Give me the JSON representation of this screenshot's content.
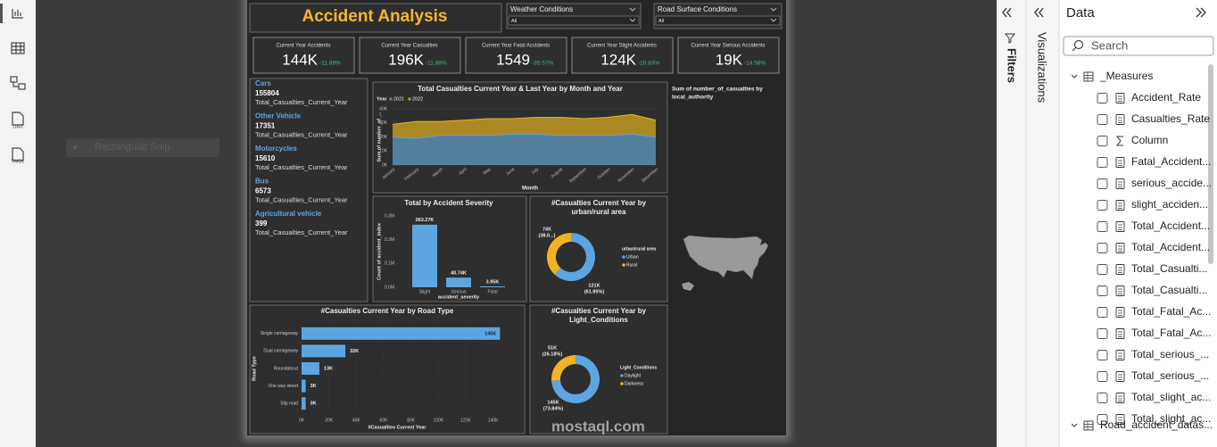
{
  "app": {
    "sidebar_labels": [
      "DAX",
      "TMDL"
    ],
    "snip": "Rectangular Snip",
    "watermark": "mostaql.com"
  },
  "report": {
    "title": "Accident Analysis",
    "slicers": [
      {
        "label": "Weather Conditions",
        "value": "All"
      },
      {
        "label": "Road Surface Conditions",
        "value": "All"
      }
    ],
    "kpis": [
      {
        "label": "Current Year Accidents",
        "value": "144K",
        "change": "-11.89%"
      },
      {
        "label": "Current Year Casualties",
        "value": "196K",
        "change": "-11.88%"
      },
      {
        "label": "Current Year Fatal Accidents",
        "value": "1549",
        "change": "-35.57%"
      },
      {
        "label": "Current Year Slight Accidents",
        "value": "124K",
        "change": "-10.83%"
      },
      {
        "label": "Current Year Serious Accidents",
        "value": "19K",
        "change": "-14.58%"
      }
    ],
    "vehicles": [
      {
        "name": "Cars",
        "value": 155804,
        "measure": "Total_Casualties_Current_Year"
      },
      {
        "name": "Other Vehicle",
        "value": 17351,
        "measure": "Total_Casualties_Current_Year"
      },
      {
        "name": "Motorcycles",
        "value": 15610,
        "measure": "Total_Casualties_Current_Year"
      },
      {
        "name": "Bus",
        "value": 6573,
        "measure": "Total_Casualties_Current_Year"
      },
      {
        "name": "Agricultural vehicle",
        "value": 399,
        "measure": "Total_Casualties_Current_Year"
      }
    ],
    "area_chart": {
      "type": "area",
      "title": "Total Casualties Current Year & Last Year by Month and Year",
      "legend_title": "Year",
      "x_label": "Month",
      "y_label": "Sum of number_of_...",
      "categories": [
        "January",
        "February",
        "March",
        "April",
        "May",
        "June",
        "July",
        "August",
        "September",
        "October",
        "November",
        "December"
      ],
      "series": [
        {
          "name": "2021",
          "color": "#4f7fa6",
          "values": [
            20000,
            19000,
            21000,
            21000,
            21000,
            22000,
            22000,
            21000,
            21000,
            21000,
            22000,
            20000
          ]
        },
        {
          "name": "2022",
          "color": "#b18e22",
          "values": [
            29000,
            31000,
            31000,
            32000,
            33000,
            33000,
            34000,
            34000,
            33000,
            34000,
            36000,
            32000
          ]
        }
      ],
      "ylim": [
        0,
        40000
      ],
      "yticks": [
        {
          "value": 0,
          "label": "0K"
        },
        {
          "value": 10000,
          "label": "10K"
        },
        {
          "value": 20000,
          "label": "20K"
        },
        {
          "value": 30000,
          "label": "30K"
        },
        {
          "value": 40000,
          "label": "40K"
        }
      ]
    },
    "severity_chart": {
      "type": "bar",
      "title": "Total by Accident Severity",
      "x_label": "accident_severity",
      "y_label": "Count of accident_index",
      "categories": [
        "Slight",
        "Serious",
        "Fatal"
      ],
      "values": [
        263270,
        40740,
        3950
      ],
      "value_labels": [
        "263.27K",
        "40.74K",
        "3.95K"
      ],
      "color": "#5da5e0",
      "ylim": [
        0,
        300000
      ],
      "yticks": [
        {
          "value": 0,
          "label": "0.0M"
        },
        {
          "value": 100000,
          "label": "0.1M"
        },
        {
          "value": 200000,
          "label": "0.2M"
        },
        {
          "value": 300000,
          "label": "0.3M"
        }
      ]
    },
    "urban_chart": {
      "type": "donut",
      "title_lines": [
        "#Casualties Current Year by",
        "urban/rural area"
      ],
      "legend_title": "urban/rural area",
      "categories": [
        "Urban",
        "Rural"
      ],
      "colors": [
        "#5da5e0",
        "#f0b323"
      ],
      "values": [
        121000,
        74000
      ],
      "value_labels": [
        "121K",
        "74K"
      ],
      "percent_labels": [
        "(61.95%)",
        "(38.0...)"
      ]
    },
    "light_chart": {
      "type": "donut",
      "title_lines": [
        "#Casualties Current Year by",
        "Light_Conditions"
      ],
      "legend_title": "Light_Conditions",
      "categories": [
        "Daylight",
        "Darkness"
      ],
      "colors": [
        "#5da5e0",
        "#f0b323"
      ],
      "values": [
        145000,
        51000
      ],
      "value_labels": [
        "145K",
        "51K"
      ],
      "percent_labels": [
        "(73.84%)",
        "(26.18%)"
      ]
    },
    "road_chart": {
      "type": "hbar",
      "title": "#Casualties Current Year by Road Type",
      "x_label": "#Casualties Current Year",
      "y_label": "Road Type",
      "categories": [
        "Single carriageway",
        "Dual carriageway",
        "Roundabout",
        "One way street",
        "Slip road"
      ],
      "values": [
        145000,
        32000,
        13000,
        3000,
        3000
      ],
      "value_labels": [
        "145K",
        "32K",
        "13K",
        "3K",
        "3K"
      ],
      "color": "#5da5e0",
      "xlim": [
        0,
        150000
      ],
      "xticks": [
        {
          "value": 0,
          "label": "0K"
        },
        {
          "value": 20000,
          "label": "20K"
        },
        {
          "value": 40000,
          "label": "40K"
        },
        {
          "value": 60000,
          "label": "60K"
        },
        {
          "value": 80000,
          "label": "80K"
        },
        {
          "value": 100000,
          "label": "100K"
        },
        {
          "value": 120000,
          "label": "120K"
        },
        {
          "value": 140000,
          "label": "140K"
        }
      ]
    },
    "map": {
      "title_lines": [
        "Sum of number_of_casualties by",
        "local_authority"
      ]
    }
  },
  "panes": {
    "filters": "Filters",
    "visualizations": "Visualizations",
    "data": {
      "title": "Data",
      "search": "Search",
      "tables": [
        {
          "name": "_Measures",
          "fields": [
            "Accident_Rate",
            "Casualties_Rate",
            "Column",
            "Fatal_Accident...",
            "serious_accide...",
            "slight_acciden...",
            "Total_Accident...",
            "Total_Accident...",
            "Total_Casualti...",
            "Total_Casualti...",
            "Total_Fatal_Ac...",
            "Total_Fatal_Ac...",
            "Total_serious_...",
            "Total_serious_...",
            "Total_slight_ac...",
            "Total_slight_ac..."
          ]
        },
        {
          "name": "Road_accident_datas...",
          "fields": []
        }
      ]
    }
  }
}
